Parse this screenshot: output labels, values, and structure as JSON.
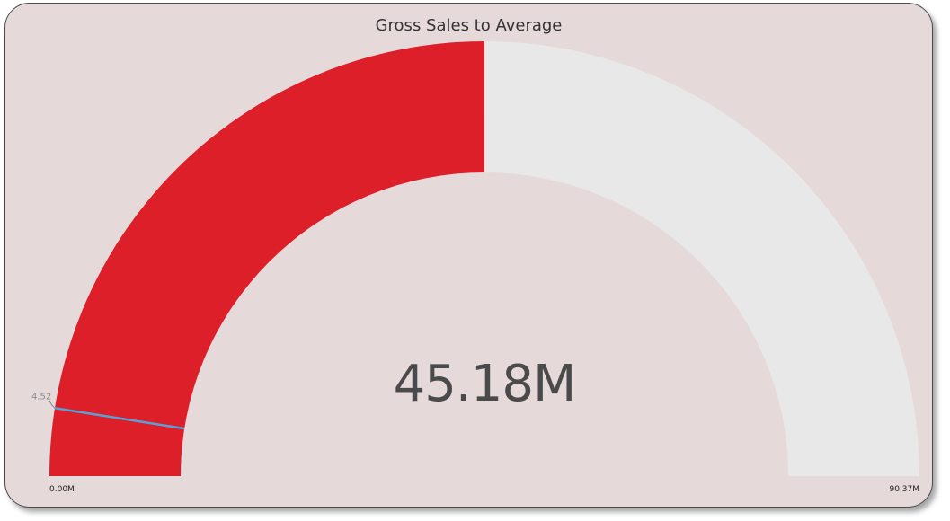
{
  "chart_data": {
    "type": "gauge",
    "title": "Gross Sales to Average",
    "value": 45.18,
    "value_label": "45.18M",
    "min": 0,
    "max": 90.37,
    "min_label": "0.00M",
    "max_label": "90.37M",
    "target": 4.52,
    "target_label": "4.52",
    "unit": "M"
  },
  "colors": {
    "card_background": "#e6d9da",
    "fill": "#dc1f28",
    "track": "#e8e8e8",
    "target_line": "#5aa0d8",
    "value_text": "#4a4a4a"
  }
}
